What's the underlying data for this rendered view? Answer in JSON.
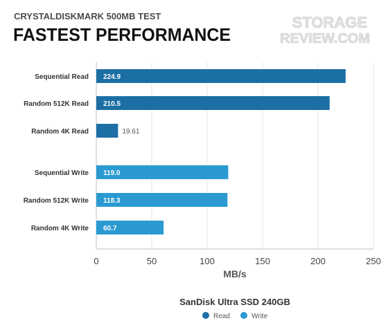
{
  "header": {
    "subtitle": "CRYSTALDISKMARK 500MB TEST",
    "title": "FASTEST PERFORMANCE",
    "logo_line1": "STORAGE",
    "logo_line2": "REVIEW.COM"
  },
  "chart_data": {
    "type": "bar",
    "orientation": "horizontal",
    "categories": [
      "Sequential Read",
      "Random 512K Read",
      "Random 4K Read",
      "Sequential Write",
      "Random 512K Write",
      "Random 4K Write"
    ],
    "values": [
      224.9,
      210.5,
      19.61,
      119.0,
      118.3,
      60.7
    ],
    "value_labels": [
      "224.9",
      "210.5",
      "19.61",
      "119.0",
      "118.3",
      "60.7"
    ],
    "bar_series": [
      "Read",
      "Read",
      "Read",
      "Write",
      "Write",
      "Write"
    ],
    "series": [
      {
        "name": "Read",
        "color": "#1c6fa4"
      },
      {
        "name": "Write",
        "color": "#2a9ad1"
      }
    ],
    "subtitle": "SanDisk Ultra SSD 240GB",
    "xlabel": "MB/s",
    "xlim": [
      0,
      250
    ],
    "xticks": [
      0,
      50,
      100,
      150,
      200,
      250
    ],
    "grid": true,
    "legend_position": "bottom-center"
  }
}
